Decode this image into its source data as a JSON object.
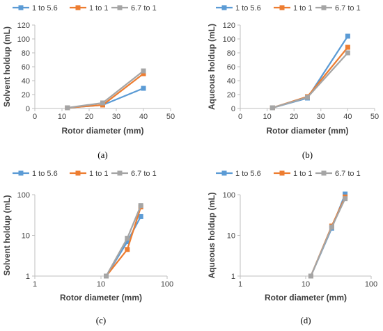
{
  "figure": {
    "panels": [
      {
        "caption": "(a)"
      },
      {
        "caption": "(b)"
      },
      {
        "caption": "(c)"
      },
      {
        "caption": "(d)"
      }
    ]
  },
  "colors": {
    "series_1": "#5B9BD5",
    "series_2": "#ED7D31",
    "series_3": "#A5A5A5",
    "axis": "#BFBFBF",
    "text": "#404040"
  },
  "chart_data": [
    {
      "type": "line",
      "caption": "(a)",
      "xlabel": "Rotor diameter (mm)",
      "ylabel": "Solvent holdup (mL)",
      "xscale": "linear",
      "yscale": "linear",
      "xlim": [
        0,
        50
      ],
      "ylim": [
        0,
        120
      ],
      "xticks": [
        "0",
        "10",
        "20",
        "30",
        "40",
        "50"
      ],
      "yticks": [
        "0",
        "20",
        "40",
        "60",
        "80",
        "100",
        "120"
      ],
      "grid": false,
      "legend_position": "top",
      "x": [
        12,
        25,
        40
      ],
      "series": [
        {
          "name": "1 to 5.6",
          "values": [
            1,
            5,
            29
          ]
        },
        {
          "name": "1 to 1",
          "values": [
            1,
            5,
            50
          ]
        },
        {
          "name": "6.7 to 1",
          "values": [
            1,
            8,
            54
          ]
        }
      ]
    },
    {
      "type": "line",
      "caption": "(b)",
      "xlabel": "Rotor diameter (mm)",
      "ylabel": "Aqueous holdup (mL)",
      "xscale": "linear",
      "yscale": "linear",
      "xlim": [
        0,
        50
      ],
      "ylim": [
        0,
        120
      ],
      "xticks": [
        "0",
        "10",
        "20",
        "30",
        "40",
        "50"
      ],
      "yticks": [
        "0",
        "20",
        "40",
        "60",
        "80",
        "100",
        "120"
      ],
      "grid": false,
      "legend_position": "top",
      "x": [
        12,
        25,
        40
      ],
      "series": [
        {
          "name": "1 to 5.6",
          "values": [
            1,
            15,
            104
          ]
        },
        {
          "name": "1 to 1",
          "values": [
            1,
            17,
            88
          ]
        },
        {
          "name": "6.7 to 1",
          "values": [
            1,
            16,
            80
          ]
        }
      ]
    },
    {
      "type": "line",
      "caption": "(c)",
      "xlabel": "Rotor diameter (mm)",
      "ylabel": "Solvent holdup (mL)",
      "xscale": "log",
      "yscale": "log",
      "xlim": [
        1,
        100
      ],
      "ylim": [
        1,
        100
      ],
      "xticks": [
        "1",
        "10",
        "100"
      ],
      "yticks": [
        "1",
        "10",
        "100"
      ],
      "grid": false,
      "legend_position": "top",
      "x": [
        12,
        25,
        40
      ],
      "series": [
        {
          "name": "1 to 5.6",
          "values": [
            1,
            7,
            29
          ]
        },
        {
          "name": "1 to 1",
          "values": [
            1,
            4.5,
            50
          ]
        },
        {
          "name": "6.7 to 1",
          "values": [
            1,
            8.5,
            54
          ]
        }
      ]
    },
    {
      "type": "line",
      "caption": "(d)",
      "xlabel": "Rotor diameter (mm)",
      "ylabel": "Aqueous holdup (mL)",
      "xscale": "log",
      "yscale": "log",
      "xlim": [
        1,
        100
      ],
      "ylim": [
        1,
        100
      ],
      "xticks": [
        "1",
        "10",
        "100"
      ],
      "yticks": [
        "1",
        "10",
        "100"
      ],
      "grid": false,
      "legend_position": "top",
      "x": [
        12,
        25,
        40
      ],
      "series": [
        {
          "name": "1 to 5.6",
          "values": [
            1,
            15,
            104
          ]
        },
        {
          "name": "1 to 1",
          "values": [
            1,
            17,
            88
          ]
        },
        {
          "name": "6.7 to 1",
          "values": [
            1,
            16,
            80
          ]
        }
      ]
    }
  ]
}
